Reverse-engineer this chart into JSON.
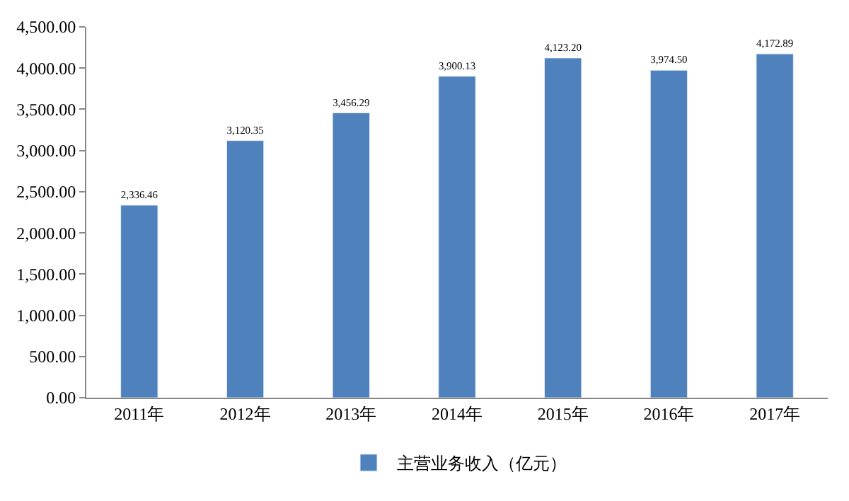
{
  "chart_data": {
    "type": "bar",
    "categories": [
      "2011年",
      "2012年",
      "2013年",
      "2014年",
      "2015年",
      "2016年",
      "2017年"
    ],
    "series": [
      {
        "name": "主营业务收入（亿元）",
        "color": "#4f81bd",
        "values": [
          2336.46,
          3120.35,
          3456.29,
          3900.13,
          4123.2,
          3974.5,
          4172.89
        ],
        "value_labels": [
          "2,336.46",
          "3,120.35",
          "3,456.29",
          "3,900.13",
          "4,123.20",
          "3,974.50",
          "4,172.89"
        ]
      }
    ],
    "ylim": [
      0,
      4500
    ],
    "yticks": [
      {
        "value": 0,
        "label": "0.00"
      },
      {
        "value": 500,
        "label": "500.00"
      },
      {
        "value": 1000,
        "label": "1,000.00"
      },
      {
        "value": 1500,
        "label": "1,500.00"
      },
      {
        "value": 2000,
        "label": "2,000.00"
      },
      {
        "value": 2500,
        "label": "2,500.00"
      },
      {
        "value": 3000,
        "label": "3,000.00"
      },
      {
        "value": 3500,
        "label": "3,500.00"
      },
      {
        "value": 4000,
        "label": "4,000.00"
      },
      {
        "value": 4500,
        "label": "4,500.00"
      }
    ],
    "legend": "bottom"
  }
}
